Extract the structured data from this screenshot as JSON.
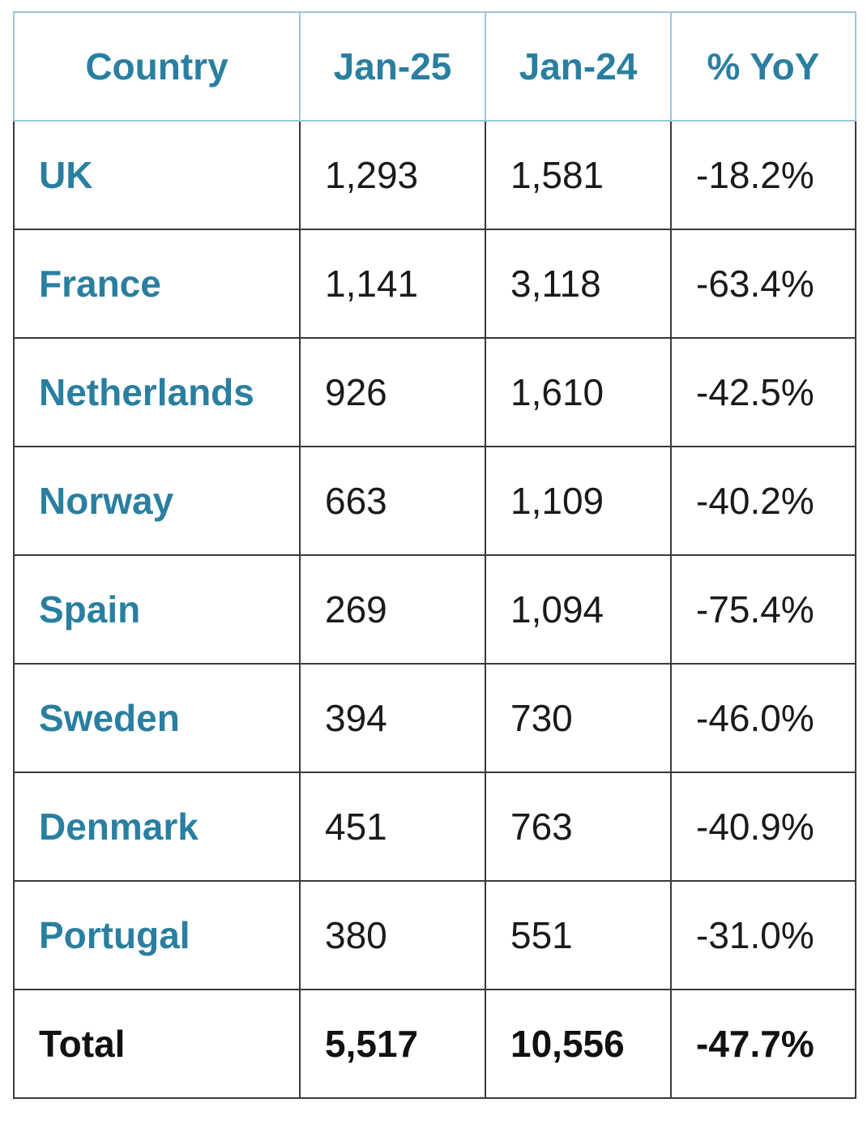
{
  "table": {
    "header": [
      "Country",
      "Jan-25",
      "Jan-24",
      "% YoY"
    ],
    "rows": [
      [
        "UK",
        "1,293",
        "1,581",
        "-18.2%"
      ],
      [
        "France",
        "1,141",
        "3,118",
        "-63.4%"
      ],
      [
        "Netherlands",
        "926",
        "1,610",
        "-42.5%"
      ],
      [
        "Norway",
        "663",
        "1,109",
        "-40.2%"
      ],
      [
        "Spain",
        "269",
        "1,094",
        "-75.4%"
      ],
      [
        "Sweden",
        "394",
        "730",
        "-46.0%"
      ],
      [
        "Denmark",
        "451",
        "763",
        "-40.9%"
      ],
      [
        "Portugal",
        "380",
        "551",
        "-31.0%"
      ]
    ],
    "total": [
      "Total",
      "5,517",
      "10,556",
      "-47.7%"
    ]
  }
}
